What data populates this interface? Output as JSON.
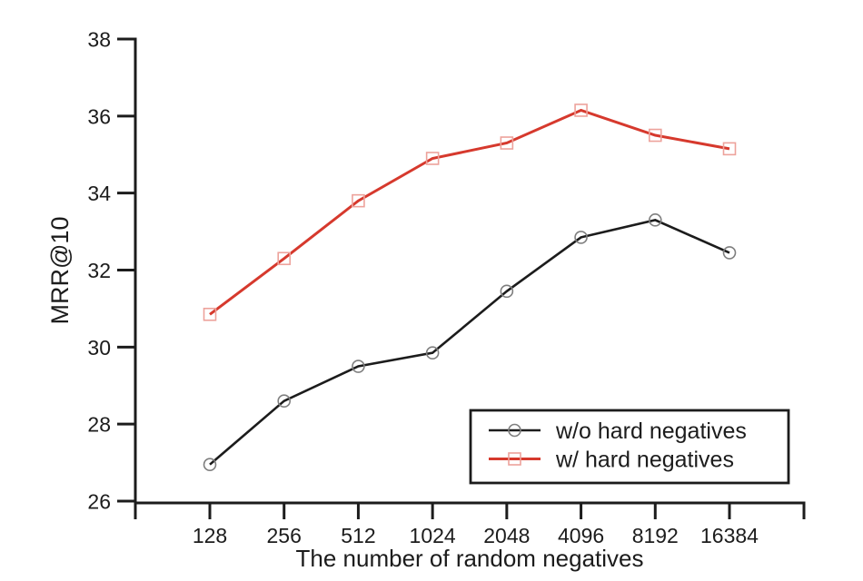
{
  "figure": {
    "background_color": "#ffffff",
    "axis_color": "#1c1c1c"
  },
  "chart_data": {
    "type": "line",
    "title": "",
    "xlabel": "The number of random negatives",
    "ylabel": "MRR@10",
    "categories": [
      "128",
      "256",
      "512",
      "1024",
      "2048",
      "4096",
      "8192",
      "16384"
    ],
    "x_scale": "categorical-log2",
    "ylim": [
      26,
      38
    ],
    "yticks": [
      26,
      28,
      30,
      32,
      34,
      36,
      38
    ],
    "grid": false,
    "legend_position": "lower right",
    "series": [
      {
        "name": "w/o hard negatives",
        "color": "#1c1c1c",
        "marker": "circle",
        "marker_color": "#7e7e7e",
        "values": [
          26.95,
          28.6,
          29.5,
          29.85,
          31.45,
          32.85,
          33.3,
          32.45
        ]
      },
      {
        "name": "w/ hard negatives",
        "color": "#d6392d",
        "marker": "square",
        "marker_color": "#eda29b",
        "values": [
          30.85,
          32.3,
          33.8,
          34.9,
          35.3,
          36.15,
          35.5,
          35.15
        ]
      }
    ]
  }
}
